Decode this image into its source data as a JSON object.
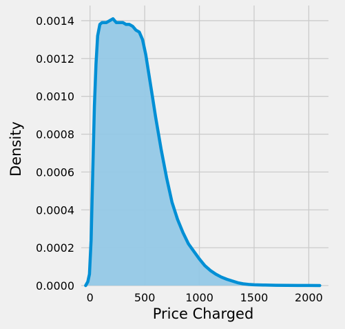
{
  "chart_data": {
    "type": "area",
    "title": "",
    "xlabel": "Price Charged",
    "ylabel": "Density",
    "xlim": [
      -80,
      2180
    ],
    "ylim": [
      0,
      0.00148
    ],
    "x_ticks": [
      0,
      500,
      1000,
      1500,
      2000
    ],
    "x_tick_labels": [
      "0",
      "500",
      "1000",
      "1500",
      "2000"
    ],
    "y_ticks": [
      0,
      0.0002,
      0.0004,
      0.0006,
      0.0008,
      0.001,
      0.0012,
      0.0014
    ],
    "y_tick_labels": [
      "0.0000",
      "0.0002",
      "0.0004",
      "0.0006",
      "0.0008",
      "0.0010",
      "0.0012",
      "0.0014"
    ],
    "grid": true,
    "legend": "none",
    "colors": {
      "line": "#008fd5",
      "fill": "#93c8e6",
      "background": "#f0f0f0",
      "grid": "#cbcbcb"
    },
    "series": [
      {
        "x": [
          -40,
          -20,
          -5,
          10,
          25,
          40,
          55,
          70,
          90,
          110,
          130,
          150,
          180,
          210,
          240,
          270,
          300,
          330,
          360,
          390,
          420,
          450,
          480,
          510,
          540,
          570,
          600,
          650,
          700,
          750,
          800,
          850,
          900,
          950,
          1000,
          1050,
          1100,
          1150,
          1200,
          1250,
          1300,
          1350,
          1400,
          1450,
          1500,
          1600,
          1700,
          1800,
          1900,
          2000,
          2100
        ],
        "y": [
          0.0,
          2e-05,
          6e-05,
          0.00024,
          0.0006,
          0.00095,
          0.00117,
          0.00132,
          0.00138,
          0.00139,
          0.00139,
          0.00139,
          0.0014,
          0.00141,
          0.00139,
          0.00139,
          0.00139,
          0.00138,
          0.00138,
          0.00137,
          0.00135,
          0.00134,
          0.0013,
          0.00122,
          0.00111,
          0.001,
          0.00089,
          0.00072,
          0.00057,
          0.00044,
          0.00035,
          0.00028,
          0.00022,
          0.00018,
          0.00014,
          0.000105,
          8e-05,
          6e-05,
          4.5e-05,
          3.3e-05,
          2.4e-05,
          1.5e-05,
          9e-06,
          6e-06,
          4e-06,
          2.5e-06,
          1.5e-06,
          1e-06,
          5e-07,
          3e-07,
          0.0
        ]
      }
    ]
  }
}
